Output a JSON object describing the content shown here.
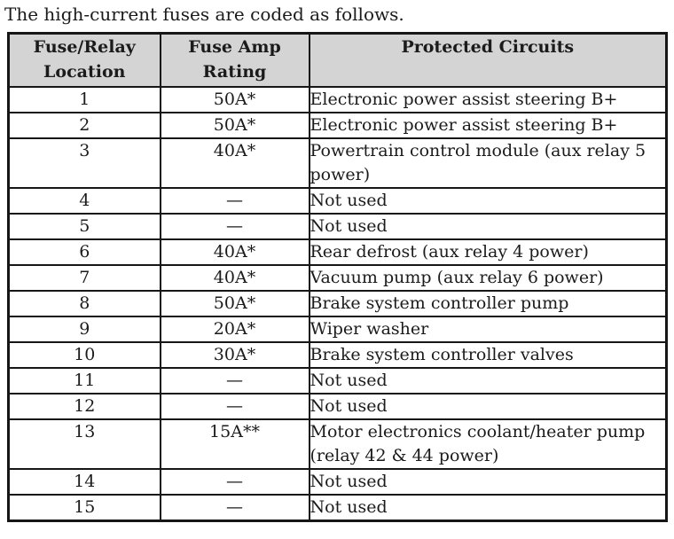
{
  "intro": "The high-current fuses are coded as follows.",
  "table": {
    "headers": [
      "Fuse/Relay\nLocation",
      "Fuse Amp\nRating",
      "Protected Circuits"
    ],
    "rows": [
      {
        "location": "1",
        "rating": "50A*",
        "circuit": "Electronic power assist steering B+"
      },
      {
        "location": "2",
        "rating": "50A*",
        "circuit": "Electronic power assist steering B+"
      },
      {
        "location": "3",
        "rating": "40A*",
        "circuit": "Powertrain control module (aux relay 5 power)"
      },
      {
        "location": "4",
        "rating": "—",
        "circuit": "Not used"
      },
      {
        "location": "5",
        "rating": "—",
        "circuit": "Not used"
      },
      {
        "location": "6",
        "rating": "40A*",
        "circuit": "Rear defrost (aux relay 4 power)"
      },
      {
        "location": "7",
        "rating": "40A*",
        "circuit": "Vacuum pump (aux relay 6 power)"
      },
      {
        "location": "8",
        "rating": "50A*",
        "circuit": "Brake system controller pump"
      },
      {
        "location": "9",
        "rating": "20A*",
        "circuit": "Wiper washer"
      },
      {
        "location": "10",
        "rating": "30A*",
        "circuit": "Brake system controller valves"
      },
      {
        "location": "11",
        "rating": "—",
        "circuit": "Not used"
      },
      {
        "location": "12",
        "rating": "—",
        "circuit": "Not used"
      },
      {
        "location": "13",
        "rating": "15A**",
        "circuit": "Motor electronics coolant/heater pump (relay 42 & 44 power)"
      },
      {
        "location": "14",
        "rating": "—",
        "circuit": "Not used"
      },
      {
        "location": "15",
        "rating": "—",
        "circuit": "Not used"
      }
    ]
  },
  "colors": {
    "header_bg": "#d4d4d4",
    "border": "#161616",
    "text": "#1b1b1b"
  }
}
